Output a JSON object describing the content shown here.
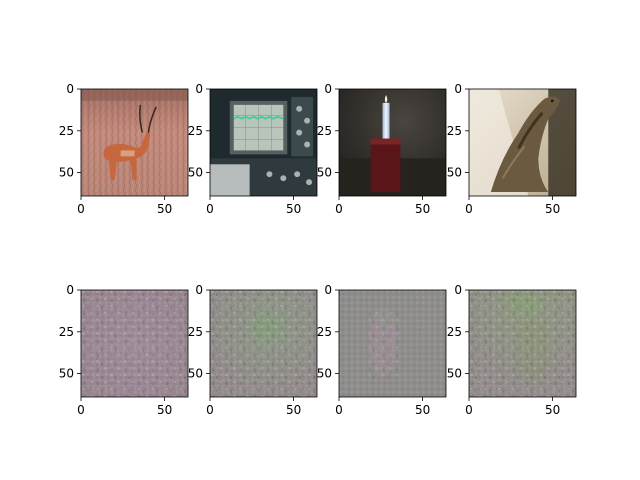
{
  "chart_data": {
    "type": "image-grid",
    "rows": 2,
    "cols": 4,
    "panels": [
      {
        "row": 0,
        "col": 0,
        "content": "impala-photo",
        "xticks": [
          "0",
          "50"
        ],
        "yticks": [
          "0",
          "25",
          "50"
        ],
        "xlim": [
          0,
          64
        ],
        "ylim": [
          64,
          0
        ]
      },
      {
        "row": 0,
        "col": 1,
        "content": "oscilloscope-photo",
        "xticks": [
          "0",
          "50"
        ],
        "yticks": [
          "0",
          "25",
          "50"
        ],
        "xlim": [
          0,
          64
        ],
        "ylim": [
          64,
          0
        ]
      },
      {
        "row": 0,
        "col": 2,
        "content": "candle-photo",
        "xticks": [
          "0",
          "50"
        ],
        "yticks": [
          "0",
          "25",
          "50"
        ],
        "xlim": [
          0,
          64
        ],
        "ylim": [
          64,
          0
        ]
      },
      {
        "row": 0,
        "col": 3,
        "content": "lizard-photo",
        "xticks": [
          "0",
          "50"
        ],
        "yticks": [
          "0",
          "25",
          "50"
        ],
        "xlim": [
          0,
          64
        ],
        "ylim": [
          64,
          0
        ]
      },
      {
        "row": 1,
        "col": 0,
        "content": "noisy-reconstruction-purple",
        "xticks": [
          "0",
          "50"
        ],
        "yticks": [
          "0",
          "25",
          "50"
        ],
        "xlim": [
          0,
          64
        ],
        "ylim": [
          64,
          0
        ]
      },
      {
        "row": 1,
        "col": 1,
        "content": "noisy-reconstruction-green",
        "xticks": [
          "0",
          "50"
        ],
        "yticks": [
          "0",
          "25",
          "50"
        ],
        "xlim": [
          0,
          64
        ],
        "ylim": [
          64,
          0
        ]
      },
      {
        "row": 1,
        "col": 2,
        "content": "noisy-reconstruction-gray",
        "xticks": [
          "0",
          "50"
        ],
        "yticks": [
          "0",
          "25",
          "50"
        ],
        "xlim": [
          0,
          64
        ],
        "ylim": [
          64,
          0
        ]
      },
      {
        "row": 1,
        "col": 3,
        "content": "noisy-reconstruction-olive",
        "xticks": [
          "0",
          "50"
        ],
        "yticks": [
          "0",
          "25",
          "50"
        ],
        "xlim": [
          0,
          64
        ],
        "ylim": [
          64,
          0
        ]
      }
    ]
  }
}
